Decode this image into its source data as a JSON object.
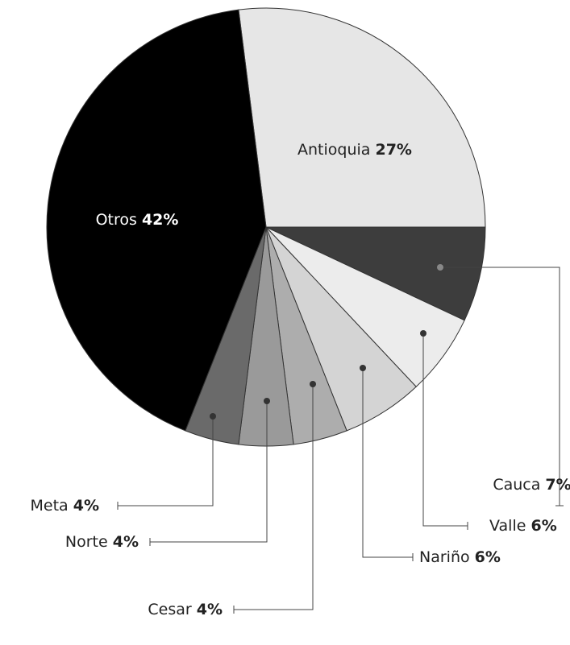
{
  "chart_data": {
    "type": "pie",
    "categories": [
      "Antioquia",
      "Cauca",
      "Valle",
      "Nariño",
      "Cesar",
      "Norte",
      "Meta",
      "Otros"
    ],
    "values": [
      27,
      7,
      6,
      6,
      4,
      4,
      4,
      42
    ],
    "value_labels": [
      "27%",
      "7%",
      "6%",
      "6%",
      "4%",
      "4%",
      "4%",
      "42%"
    ],
    "colors": [
      "#e6e6e6",
      "#3d3d3d",
      "#ececec",
      "#d4d4d4",
      "#adadad",
      "#9a9a9a",
      "#6a6a6a",
      "#000000"
    ]
  }
}
